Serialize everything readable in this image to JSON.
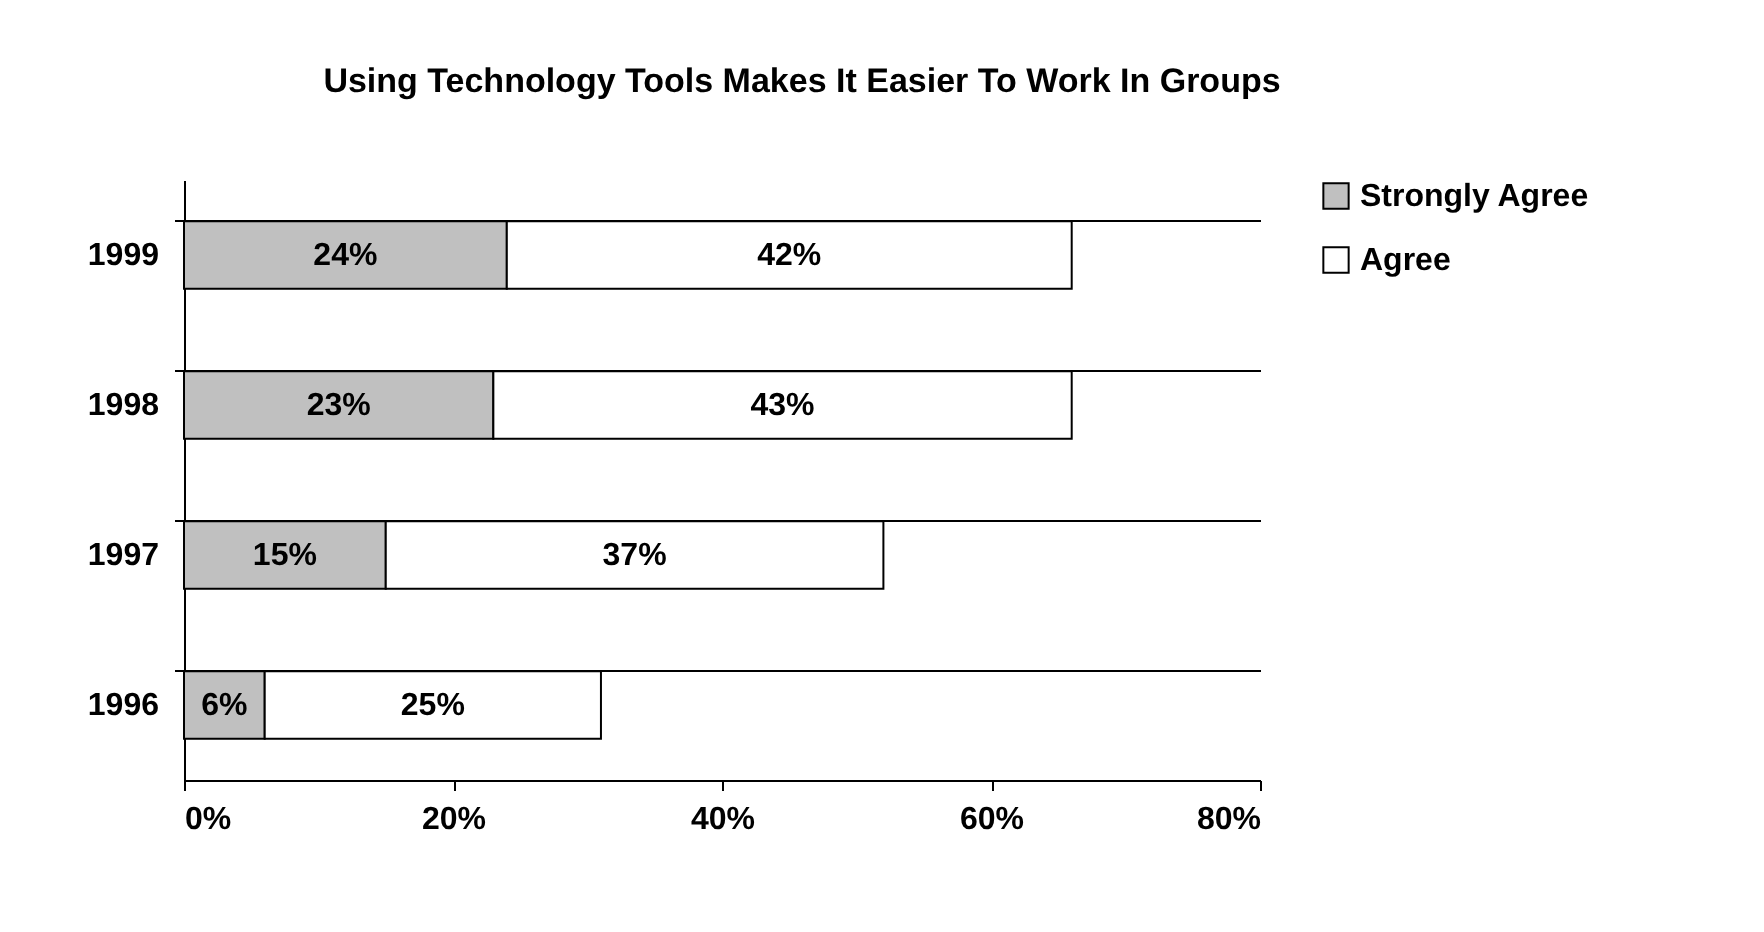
{
  "chart_data": {
    "type": "bar",
    "orientation": "horizontal",
    "stacked": true,
    "title": "Using Technology Tools Makes It Easier To Work In Groups",
    "categories": [
      "1999",
      "1998",
      "1997",
      "1996"
    ],
    "series": [
      {
        "name": "Strongly Agree",
        "color": "#c0c0c0",
        "values": [
          24,
          23,
          15,
          6
        ],
        "value_labels": [
          "24%",
          "23%",
          "15%",
          "6%"
        ]
      },
      {
        "name": "Agree",
        "color": "#ffffff",
        "values": [
          42,
          43,
          37,
          25
        ],
        "value_labels": [
          "42%",
          "43%",
          "37%",
          "25%"
        ]
      }
    ],
    "xlim": [
      0,
      80
    ],
    "xticks": [
      {
        "value": 0,
        "label": "0%"
      },
      {
        "value": 20,
        "label": "20%"
      },
      {
        "value": 40,
        "label": "40%"
      },
      {
        "value": 60,
        "label": "60%"
      },
      {
        "value": 80,
        "label": "80%"
      }
    ],
    "grid": "y",
    "legend": "right"
  }
}
